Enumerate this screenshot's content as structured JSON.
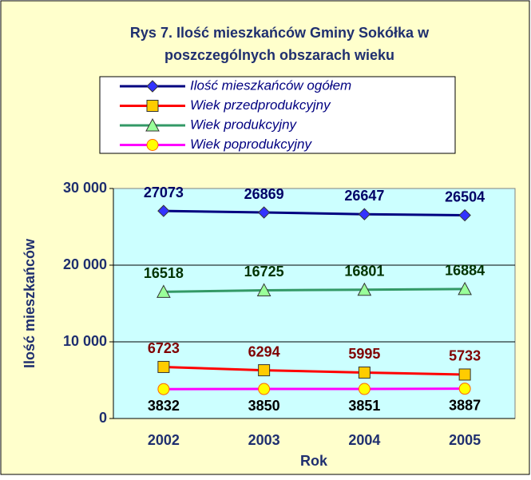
{
  "chart_data": {
    "type": "line",
    "title": "Rys 7. Ilość mieszkańców Gminy Sokółka w",
    "subtitle": "poszczególnych obszarach wieku",
    "x_label": "Rok",
    "y_label": "Ilość mieszkańców",
    "categories": [
      "2002",
      "2003",
      "2004",
      "2005"
    ],
    "series": [
      {
        "name": "Ilość mieszkańców ogółem",
        "color": "#000080",
        "marker": "diamond",
        "marker_color": "#3333ff",
        "label_color": "#000066",
        "label_position": "above",
        "values": [
          27073,
          26869,
          26647,
          26504
        ]
      },
      {
        "name": "Wiek przedprodukcyjny",
        "color": "#ff0000",
        "marker": "square",
        "marker_color": "#ffcc00",
        "label_color": "#800000",
        "label_position": "above",
        "values": [
          6723,
          6294,
          5995,
          5733
        ]
      },
      {
        "name": "Wiek produkcyjny",
        "color": "#339966",
        "marker": "triangle",
        "marker_color": "#99ff99",
        "label_color": "#003300",
        "label_position": "above",
        "values": [
          16518,
          16725,
          16801,
          16884
        ]
      },
      {
        "name": "Wiek poprodukcyjny",
        "color": "#ff00ff",
        "marker": "circle",
        "marker_color": "#ffff00",
        "label_color": "#000000",
        "label_position": "below",
        "values": [
          3832,
          3850,
          3851,
          3887
        ]
      }
    ],
    "ylim": [
      0,
      30000
    ],
    "yticks": [
      0,
      {
        "value": 10000,
        "label": "10 000"
      },
      {
        "value": 20000,
        "label": "20 000"
      },
      {
        "value": 30000,
        "label": "30 000"
      }
    ],
    "grid": true
  }
}
